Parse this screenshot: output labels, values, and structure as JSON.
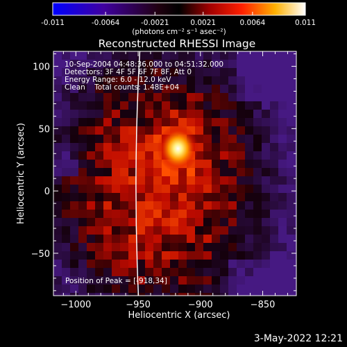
{
  "colorbar": {
    "tick_labels": [
      "-0.011",
      "-0.0064",
      "-0.0021",
      "0.0021",
      "0.0064",
      "0.011"
    ],
    "unit_label": "(photons cm⁻² s⁻¹ asec⁻²)",
    "range": [
      -0.011,
      0.011
    ]
  },
  "chart_data": {
    "type": "heatmap",
    "title": "Reconstructed RHESSI Image",
    "xlabel": "Heliocentric X (arcsec)",
    "ylabel": "Heliocentric Y (arcsec)",
    "xlim": [
      -1018,
      -823
    ],
    "ylim": [
      -84,
      112
    ],
    "x_ticks": [
      -1000,
      -950,
      -900,
      -850
    ],
    "y_ticks": [
      -50,
      0,
      50,
      100
    ],
    "x_tick_labels": [
      "−1000",
      "−950",
      "−900",
      "−850"
    ],
    "y_tick_labels": [
      "−50",
      "0",
      "50",
      "100"
    ],
    "annotations": [
      "10-Sep-2004 04:48:36.000 to 04:51:32.000",
      "Detectors: 3F 4F 5F 6F 7F 8F, Att 0",
      "Energy Range: 6.0 - 12.0 keV",
      "Clean    Total counts: 1.48E+04"
    ],
    "peak_label": "Position of Peak = [-918,34]",
    "peak": {
      "x": -918,
      "y": 34,
      "value": 0.011
    },
    "limb_x": -952
  },
  "footer": {
    "date": "3-May-2022 12:21"
  }
}
